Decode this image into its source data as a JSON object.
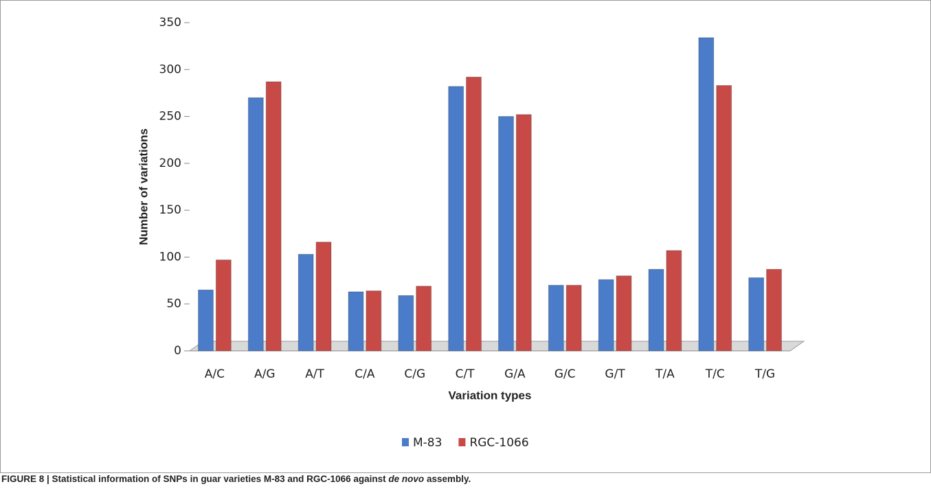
{
  "chart_data": {
    "type": "bar",
    "y_label": "Number of variations",
    "x_label": "Variation types",
    "categories": [
      "A/C",
      "A/G",
      "A/T",
      "C/A",
      "C/G",
      "C/T",
      "G/A",
      "G/C",
      "G/T",
      "T/A",
      "T/C",
      "T/G"
    ],
    "series": [
      {
        "name": "M-83",
        "color": "#4a7cc9",
        "values": [
          65,
          270,
          103,
          63,
          59,
          282,
          250,
          70,
          76,
          87,
          334,
          78
        ]
      },
      {
        "name": "RGC-1066",
        "color": "#c84a47",
        "values": [
          97,
          287,
          116,
          64,
          69,
          292,
          252,
          70,
          80,
          107,
          283,
          87
        ]
      }
    ],
    "ylim": [
      0,
      350
    ],
    "yticks": [
      0,
      50,
      100,
      150,
      200,
      250,
      300,
      350
    ]
  },
  "caption": [
    "FIGURE 8 | Statistical information of SNPs in guar varieties M-83 and RGC-1066 against ",
    "de novo",
    " assembly."
  ]
}
